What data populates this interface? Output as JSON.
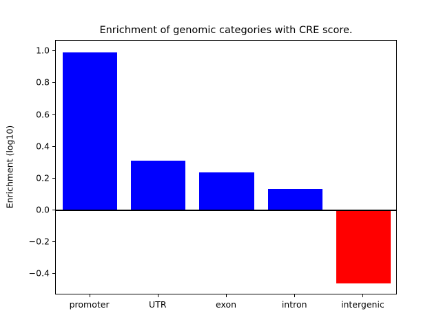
{
  "chart_data": {
    "type": "bar",
    "title": "Enrichment of genomic categories with CRE score.",
    "ylabel": "Enrichment (log10)",
    "xlabel": "",
    "categories": [
      "promoter",
      "UTR",
      "exon",
      "intron",
      "intergenic"
    ],
    "values": [
      0.993,
      0.31,
      0.24,
      0.135,
      -0.46
    ],
    "bar_colors": [
      "#0000ff",
      "#0000ff",
      "#0000ff",
      "#0000ff",
      "#ff0000"
    ],
    "positive_color": "#0000ff",
    "negative_color": "#ff0000",
    "ylim": [
      -0.533,
      1.066
    ],
    "yticks": [
      1.0,
      0.8,
      0.6,
      0.4,
      0.2,
      0.0,
      -0.2,
      -0.4
    ],
    "zero_line": 0,
    "grid": "off",
    "legend": "none",
    "bar_width_fraction": 0.8
  }
}
